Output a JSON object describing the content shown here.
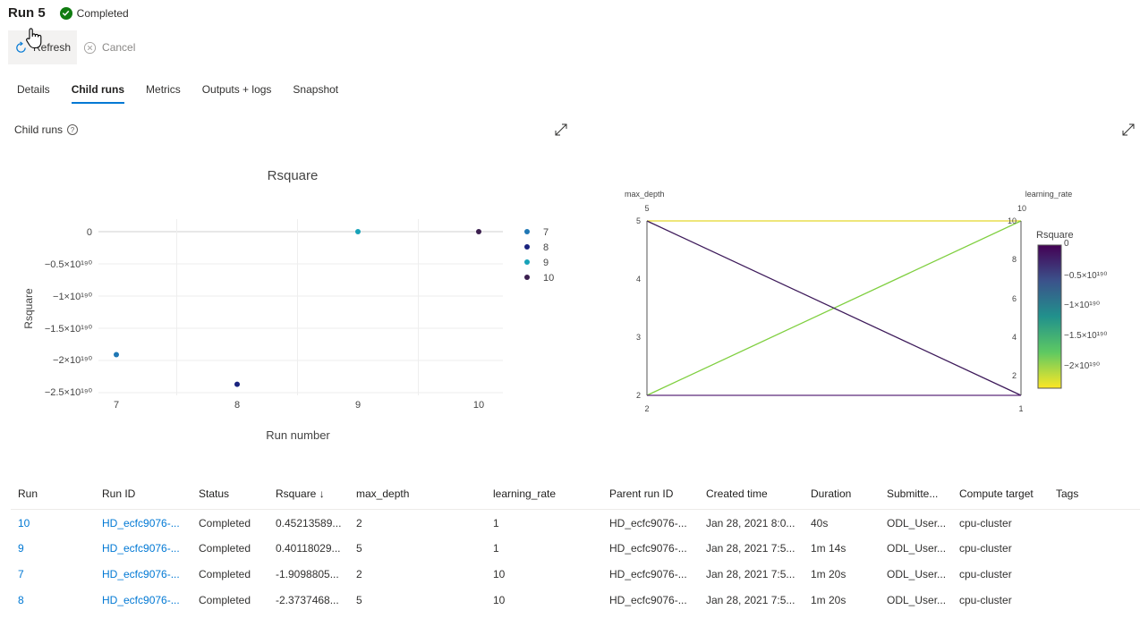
{
  "header": {
    "title": "Run 5",
    "status": "Completed"
  },
  "toolbar": {
    "refresh_label": "Refresh",
    "cancel_label": "Cancel"
  },
  "tabs": [
    {
      "label": "Details",
      "active": false
    },
    {
      "label": "Child runs",
      "active": true
    },
    {
      "label": "Metrics",
      "active": false
    },
    {
      "label": "Outputs + logs",
      "active": false
    },
    {
      "label": "Snapshot",
      "active": false
    }
  ],
  "section": {
    "label": "Child runs"
  },
  "colors": {
    "accent": "#0078d4",
    "success": "#107c10"
  },
  "chart_data": [
    {
      "type": "scatter",
      "title": "Rsquare",
      "xlabel": "Run number",
      "ylabel": "Rsquare",
      "x_ticks": [
        "7",
        "8",
        "9",
        "10"
      ],
      "y_ticks": [
        "0",
        "−0.5×10¹⁹⁰",
        "−1×10¹⁹⁰",
        "−1.5×10¹⁹⁰",
        "−2×10¹⁹⁰",
        "−2.5×10¹⁹⁰"
      ],
      "legend_position": "right",
      "series": [
        {
          "name": "7",
          "x": 7,
          "y_e190": -1.91,
          "color": "#1f77b4"
        },
        {
          "name": "8",
          "x": 8,
          "y_e190": -2.37,
          "color": "#1a237e"
        },
        {
          "name": "9",
          "x": 9,
          "y_e190": 0.0,
          "color": "#17a2b8"
        },
        {
          "name": "10",
          "x": 10,
          "y_e190": 0.0,
          "color": "#3b1f4f"
        }
      ]
    },
    {
      "type": "parallel-coordinates",
      "axes": [
        {
          "name": "max_depth",
          "range_label": "5",
          "ticks": [
            "5",
            "4",
            "3",
            "2"
          ],
          "bottom_label": "2"
        },
        {
          "name": "learning_rate",
          "range_label": "10",
          "ticks": [
            "10",
            "8",
            "6",
            "4",
            "2"
          ],
          "bottom_label": "1"
        }
      ],
      "colorbar": {
        "title": "Rsquare",
        "ticks": [
          "0",
          "−0.5×10¹⁹⁰",
          "−1×10¹⁹⁰",
          "−1.5×10¹⁹⁰",
          "−2×10¹⁹⁰"
        ]
      },
      "lines": [
        {
          "max_depth": 5,
          "learning_rate": 10,
          "color": "#e4d82a"
        },
        {
          "max_depth": 2,
          "learning_rate": 10,
          "color": "#7fcf3f"
        },
        {
          "max_depth": 5,
          "learning_rate": 1,
          "color": "#3d1a5a"
        },
        {
          "max_depth": 2,
          "learning_rate": 1,
          "color": "#5c2a7a"
        }
      ]
    }
  ],
  "table": {
    "columns": [
      "Run",
      "Run ID",
      "Status",
      "Rsquare ↓",
      "max_depth",
      "learning_rate",
      "Parent run ID",
      "Created time",
      "Duration",
      "Submitte...",
      "Compute target",
      "Tags"
    ],
    "rows": [
      [
        "10",
        "HD_ecfc9076-...",
        "Completed",
        "0.45213589...",
        "2",
        "1",
        "HD_ecfc9076-...",
        "Jan 28, 2021 8:0...",
        "40s",
        "ODL_User...",
        "cpu-cluster",
        ""
      ],
      [
        "9",
        "HD_ecfc9076-...",
        "Completed",
        "0.40118029...",
        "5",
        "1",
        "HD_ecfc9076-...",
        "Jan 28, 2021 7:5...",
        "1m 14s",
        "ODL_User...",
        "cpu-cluster",
        ""
      ],
      [
        "7",
        "HD_ecfc9076-...",
        "Completed",
        "-1.9098805...",
        "2",
        "10",
        "HD_ecfc9076-...",
        "Jan 28, 2021 7:5...",
        "1m 20s",
        "ODL_User...",
        "cpu-cluster",
        ""
      ],
      [
        "8",
        "HD_ecfc9076-...",
        "Completed",
        "-2.3737468...",
        "5",
        "10",
        "HD_ecfc9076-...",
        "Jan 28, 2021 7:5...",
        "1m 20s",
        "ODL_User...",
        "cpu-cluster",
        ""
      ]
    ]
  }
}
